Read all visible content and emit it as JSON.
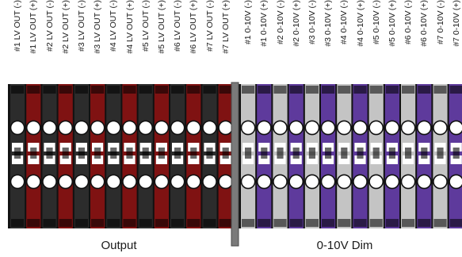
{
  "groups": [
    {
      "name": "Output",
      "pins": [
        "#1 LV OUT (-)",
        "#1 LV OUT (+)",
        "#2 LV OUT (-)",
        "#2 LV OUT (+)",
        "#3 LV OUT (-)",
        "#3 LV OUT (+)",
        "#4 LV OUT (-)",
        "#4 LV OUT (+)",
        "#5 LV OUT (-)",
        "#5 LV OUT (+)",
        "#6 LV OUT (-)",
        "#6 LV OUT (+)",
        "#7 LV OUT (-)",
        "#7 LV OUT (+)"
      ],
      "colors": {
        "negative": "#2c2c2c",
        "positive": "#7f1212"
      }
    },
    {
      "name": "0-10V Dim",
      "pins": [
        "#1 0-10V (-)",
        "#1 0-10V (+)",
        "#2 0-10V (-)",
        "#2 0-10V (+)",
        "#3 0-10V (-)",
        "#3 0-10V (+)",
        "#4 0-10V (-)",
        "#4 0-10V (+)",
        "#5 0-10V (-)",
        "#5 0-10V (+)",
        "#6 0-10V (-)",
        "#6 0-10V (+)",
        "#7 0-10V (-)",
        "#7 0-10V (+)"
      ],
      "colors": {
        "negative": "#c4c4c4",
        "positive": "#5e3a9c"
      }
    }
  ],
  "colors": {
    "divider": "#7a7a7a",
    "frame": "#111111",
    "screw": "#ffffff"
  }
}
